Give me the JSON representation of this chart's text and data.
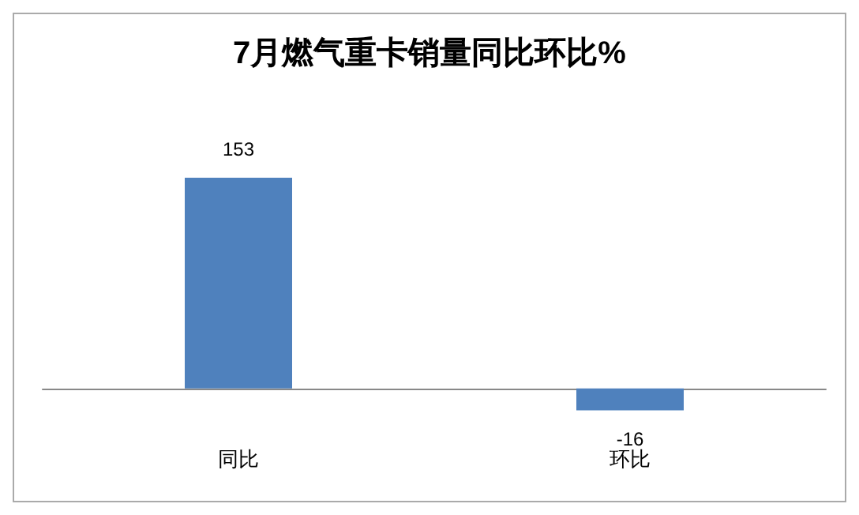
{
  "chart_data": {
    "type": "bar",
    "title": "7月燃气重卡销量同比环比%",
    "categories": [
      "同比",
      "环比"
    ],
    "values": [
      153,
      -16
    ],
    "color": "#4f81bd",
    "data_labels": true
  }
}
